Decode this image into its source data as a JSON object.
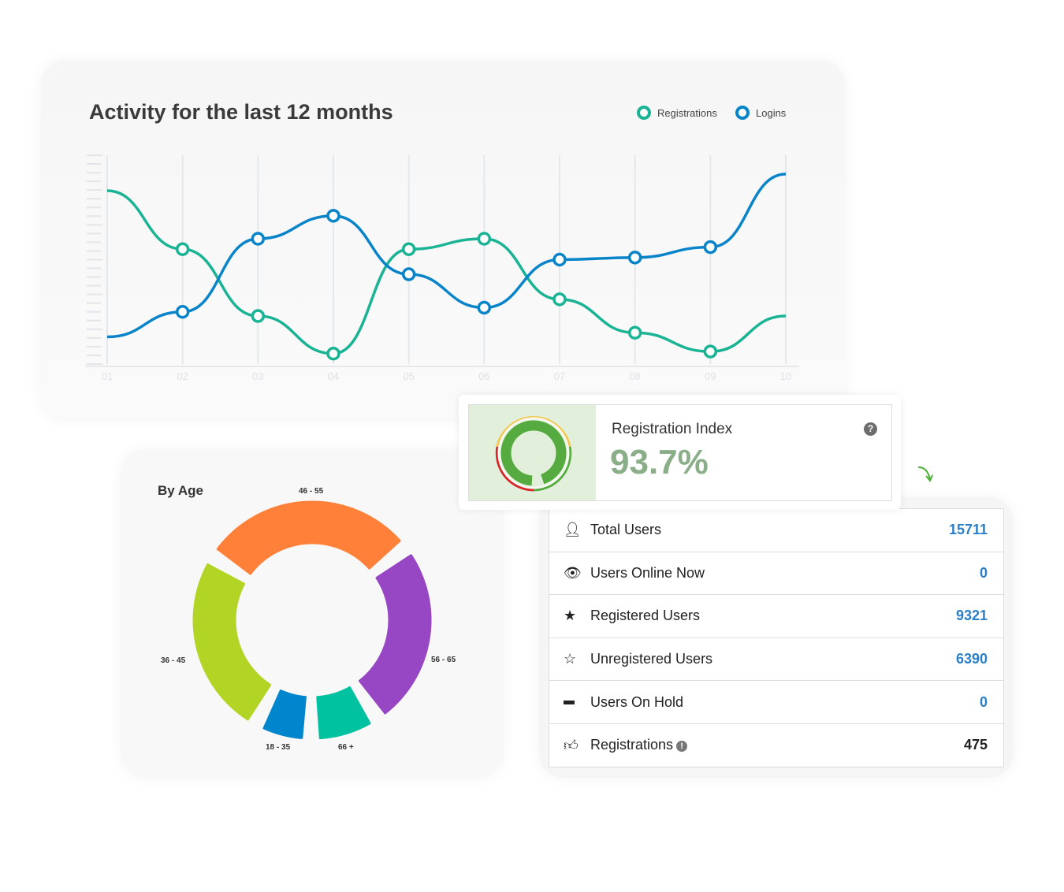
{
  "activity": {
    "title": "Activity for the last 12 months",
    "legend": [
      {
        "label": "Registrations",
        "color": "#1ab394"
      },
      {
        "label": "Logins",
        "color": "#0a84c8"
      }
    ]
  },
  "chart_data": [
    {
      "type": "line",
      "title": "Activity for the last 12 months",
      "categories": [
        "01",
        "02",
        "03",
        "04",
        "05",
        "06",
        "07",
        "08",
        "09",
        "10"
      ],
      "series": [
        {
          "name": "Registrations",
          "color": "#1ab394",
          "values": [
            83,
            55,
            23,
            5,
            55,
            60,
            31,
            15,
            6,
            23
          ]
        },
        {
          "name": "Logins",
          "color": "#0a84c8",
          "values": [
            13,
            25,
            60,
            71,
            43,
            27,
            50,
            51,
            56,
            91
          ]
        }
      ],
      "ylim": [
        0,
        100
      ],
      "grid": "vertical",
      "legend": "top-right"
    },
    {
      "type": "pie",
      "title": "By Age",
      "categories": [
        "46 - 55",
        "56 - 65",
        "66 +",
        "18 - 35",
        "36 - 45"
      ],
      "values": [
        32,
        27,
        8,
        6,
        27
      ],
      "colors": [
        "#ff8039",
        "#9747c3",
        "#00c1a0",
        "#0086cc",
        "#b2d424"
      ]
    }
  ],
  "age": {
    "title": "By Age"
  },
  "index": {
    "title": "Registration Index",
    "value": "93.7%",
    "percent": 93.7,
    "help": "?"
  },
  "stats": [
    {
      "icon": "user-icon",
      "glyph": "👤",
      "label": "Total Users",
      "value": "15711"
    },
    {
      "icon": "eye-icon",
      "glyph": "👁",
      "label": "Users Online Now",
      "value": "0"
    },
    {
      "icon": "star-icon",
      "glyph": "★",
      "label": "Registered Users",
      "value": "9321"
    },
    {
      "icon": "star-outline-icon",
      "glyph": "☆",
      "label": "Unregistered Users",
      "value": "6390"
    },
    {
      "icon": "minus-icon",
      "glyph": "▬",
      "label": "Users On Hold",
      "value": "0"
    },
    {
      "icon": "thumbs-up-icon",
      "glyph": "👍",
      "label": "Registrations",
      "value": "475",
      "info": "!"
    }
  ]
}
